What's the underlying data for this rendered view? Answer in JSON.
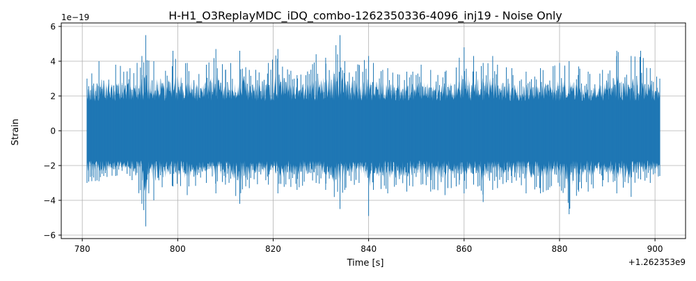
{
  "chart_data": {
    "type": "line",
    "title": "H-H1_O3ReplayMDC_iDQ_combo-1262350336-4096_inj19 - Noise Only",
    "xlabel": "Time [s]",
    "ylabel": "Strain",
    "x_offset_label": "+1.262353e9",
    "y_scale_label": "1e−19",
    "xlim": [
      775.6,
      906.4
    ],
    "ylim": [
      -6.2,
      6.2
    ],
    "x_ticks": [
      780,
      800,
      820,
      840,
      860,
      880,
      900
    ],
    "x_tick_labels": [
      "780",
      "800",
      "820",
      "840",
      "860",
      "880",
      "900"
    ],
    "y_ticks": [
      -6,
      -4,
      -2,
      0,
      2,
      4,
      6
    ],
    "y_tick_labels": [
      "−6",
      "−4",
      "−2",
      "0",
      "2",
      "4",
      "6"
    ],
    "grid": true,
    "series": [
      {
        "color": "#1f77b4",
        "x_start": 781,
        "x_end": 901,
        "envelope_x": [
          781,
          782,
          783.5,
          787,
          790,
          792.5,
          793.3,
          795,
          799,
          802,
          806,
          808,
          810,
          813,
          815,
          819,
          821,
          825,
          829,
          831,
          834,
          835,
          838,
          840,
          841,
          844,
          848,
          851,
          853,
          856,
          859,
          860,
          862,
          864,
          866,
          867,
          870,
          873,
          876,
          880,
          882,
          884,
          886,
          889,
          892,
          895,
          897,
          899,
          901
        ],
        "envelope_max": [
          3.0,
          3.3,
          4.0,
          3.8,
          3.6,
          4.3,
          5.5,
          4.0,
          4.6,
          3.9,
          3.8,
          4.7,
          3.5,
          4.6,
          3.5,
          3.9,
          4.7,
          3.2,
          4.4,
          4.2,
          5.5,
          4.0,
          3.8,
          4.3,
          3.9,
          3.6,
          3.4,
          3.8,
          3.5,
          3.4,
          4.2,
          4.8,
          4.3,
          3.9,
          4.3,
          3.8,
          3.6,
          3.4,
          3.6,
          3.9,
          4.0,
          3.7,
          3.4,
          3.5,
          4.6,
          4.3,
          4.6,
          3.6,
          3.0
        ],
        "envelope_min": [
          -3.0,
          -2.9,
          -2.9,
          -2.6,
          -2.6,
          -4.2,
          -5.5,
          -4.0,
          -3.2,
          -3.7,
          -3.0,
          -3.6,
          -3.1,
          -4.2,
          -3.3,
          -3.1,
          -3.6,
          -3.4,
          -3.0,
          -3.4,
          -4.5,
          -3.4,
          -3.0,
          -4.9,
          -3.4,
          -3.6,
          -3.5,
          -3.1,
          -3.5,
          -3.7,
          -3.1,
          -3.6,
          -3.1,
          -4.1,
          -3.4,
          -3.3,
          -3.0,
          -3.6,
          -3.6,
          -3.2,
          -4.8,
          -3.5,
          -3.5,
          -3.2,
          -3.6,
          -3.8,
          -2.8,
          -3.0,
          -2.6
        ],
        "typical_amplitude": 1.7
      }
    ]
  }
}
